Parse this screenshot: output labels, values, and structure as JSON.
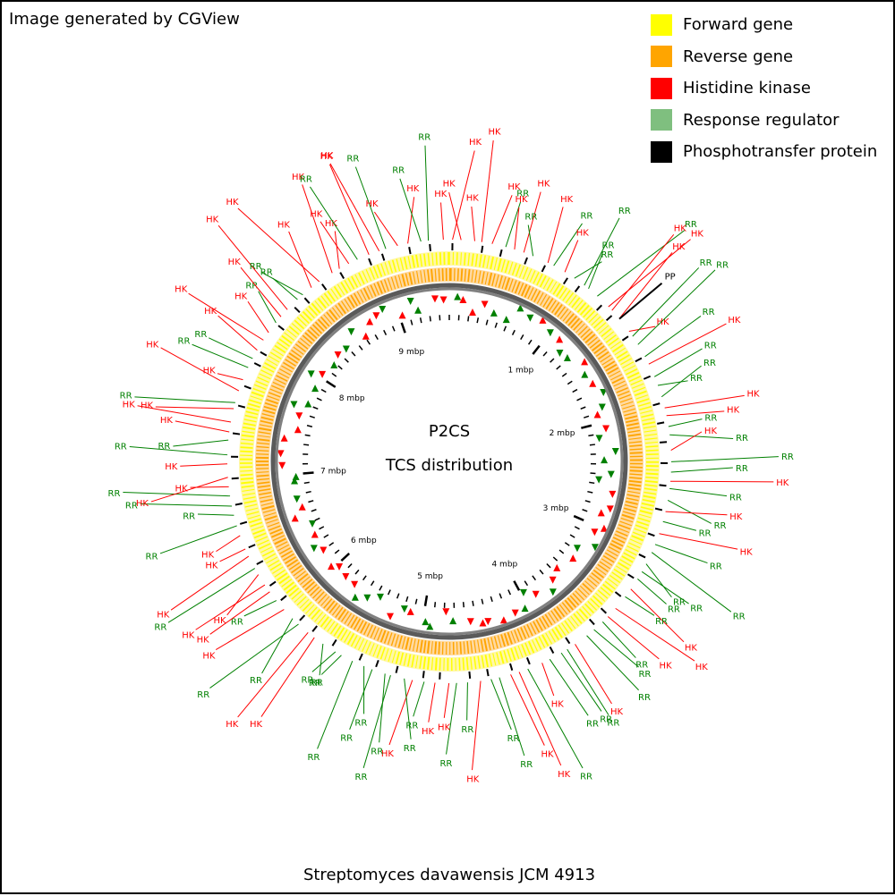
{
  "header": {
    "credit": "Image generated by CGView"
  },
  "legend": [
    {
      "label": "Forward gene",
      "color": "#ffff00"
    },
    {
      "label": "Reverse gene",
      "color": "#ffa500"
    },
    {
      "label": "Histidine kinase",
      "color": "#ff0000"
    },
    {
      "label": "Response regulator",
      "color": "#7fbf7f"
    },
    {
      "label": "Phosphotransfer protein",
      "color": "#000000"
    }
  ],
  "map": {
    "title_line1": "P2CS",
    "title_line2": "TCS distribution",
    "organism": "Streptomyces davawensis JCM 4913",
    "scale_labels": [
      "1 mbp",
      "2 mbp",
      "3 mbp",
      "4 mbp",
      "5 mbp",
      "6 mbp",
      "7 mbp",
      "8 mbp",
      "9 mbp"
    ],
    "feature_labels": {
      "hk": "HK",
      "rr": "RR",
      "pp": "PP"
    },
    "colors": {
      "hk": "#ff0000",
      "rr": "#008000",
      "pp": "#000000",
      "forward_gene": "#ffff00",
      "reverse_gene": "#ffa500",
      "backbone": "#808080"
    }
  }
}
